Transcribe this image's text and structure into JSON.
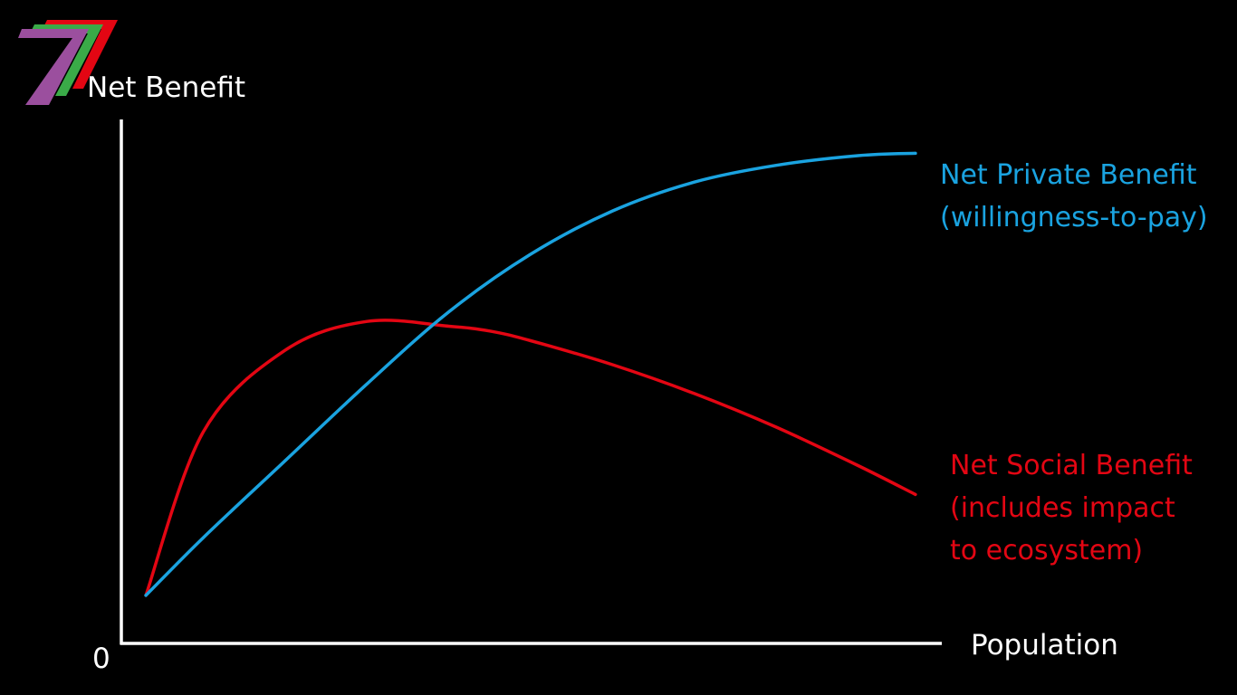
{
  "colors": {
    "background": "#000000",
    "axis": "#ffffff",
    "private": "#1aa3e0",
    "social": "#e30613",
    "logo_purple": "#9b4f9e",
    "logo_green": "#3aab48",
    "logo_red": "#e30613"
  },
  "logo": {
    "icon": "seven-chevron-logo-icon"
  },
  "chart_data": {
    "type": "line",
    "xlabel": "Population",
    "ylabel": "Net Benefit",
    "origin_label": "0",
    "xlim": [
      0,
      100
    ],
    "ylim": [
      0,
      100
    ],
    "grid": false,
    "legend_placement": "right, beside line ends",
    "series": [
      {
        "key": "private",
        "name_lines": [
          "Net Private Benefit",
          "(willingness-to-pay)"
        ],
        "x": [
          3,
          10,
          20,
          30,
          40,
          50,
          60,
          70,
          80,
          90,
          97
        ],
        "y": [
          10,
          22,
          38,
          54,
          69,
          81,
          90,
          96,
          99.5,
          101.5,
          102
        ]
      },
      {
        "key": "social",
        "name_lines": [
          "Net Social Benefit",
          "(includes impact",
          "to ecosystem)"
        ],
        "x": [
          3,
          10,
          20,
          30,
          40,
          45,
          50,
          60,
          70,
          80,
          90,
          97
        ],
        "y": [
          10,
          44,
          61,
          67,
          66,
          65,
          63,
          58,
          52,
          45,
          37,
          31
        ]
      }
    ]
  }
}
